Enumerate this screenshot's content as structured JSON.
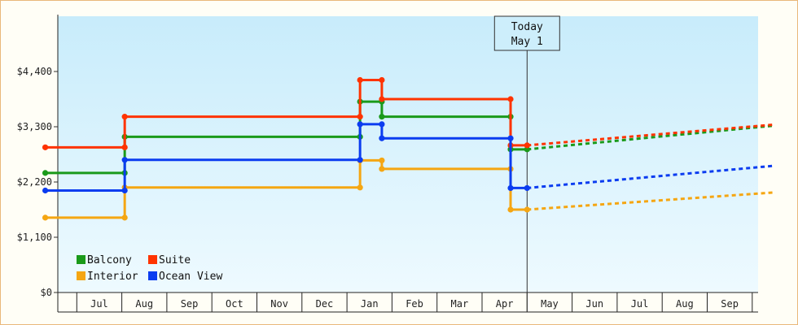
{
  "chart_data": {
    "type": "line",
    "style": "step",
    "title": "",
    "xlabel": "",
    "ylabel": "",
    "y_ticks": [
      "$0",
      "$1,100",
      "$2,200",
      "$3,300",
      "$4,400"
    ],
    "ylim": [
      0,
      5500
    ],
    "x_tick_labels": [
      "Jul",
      "Aug",
      "Sep",
      "Oct",
      "Nov",
      "Dec",
      "Jan",
      "Feb",
      "Mar",
      "Apr",
      "May",
      "Jun",
      "Jul",
      "Aug",
      "Sep"
    ],
    "x_months": [
      "2024-07",
      "2024-08",
      "2024-09",
      "2024-10",
      "2024-11",
      "2024-12",
      "2025-01",
      "2025-02",
      "2025-03",
      "2025-04",
      "2025-05",
      "2025-06",
      "2025-07",
      "2025-08",
      "2025-09"
    ],
    "today_marker": {
      "lines": [
        "Today",
        "May 1"
      ],
      "date": "2025-05-01"
    },
    "legend_position": "bottom-left",
    "background": "gradient light blue",
    "series": [
      {
        "name": "Balcony",
        "color": "#1a9a1a",
        "points": [
          [
            "2024-06-10",
            2380
          ],
          [
            "2024-08-03",
            2380
          ],
          [
            "2024-08-03",
            3100
          ],
          [
            "2025-01-10",
            3100
          ],
          [
            "2025-01-10",
            3800
          ],
          [
            "2025-01-25",
            3800
          ],
          [
            "2025-01-25",
            3500
          ],
          [
            "2025-04-20",
            3500
          ],
          [
            "2025-04-20",
            2850
          ],
          [
            "2025-05-01",
            2850
          ]
        ],
        "projection": [
          [
            "2025-05-01",
            2850
          ],
          [
            "2025-10-15",
            3320
          ]
        ]
      },
      {
        "name": "Suite",
        "color": "#ff3300",
        "points": [
          [
            "2024-06-10",
            2890
          ],
          [
            "2024-08-03",
            2890
          ],
          [
            "2024-08-03",
            3500
          ],
          [
            "2025-01-10",
            3500
          ],
          [
            "2025-01-10",
            4230
          ],
          [
            "2025-01-25",
            4230
          ],
          [
            "2025-01-25",
            3850
          ],
          [
            "2025-04-20",
            3850
          ],
          [
            "2025-04-20",
            2930
          ],
          [
            "2025-05-01",
            2930
          ]
        ],
        "projection": [
          [
            "2025-05-01",
            2930
          ],
          [
            "2025-10-15",
            3340
          ]
        ]
      },
      {
        "name": "Interior",
        "color": "#f5a612",
        "points": [
          [
            "2024-06-10",
            1490
          ],
          [
            "2024-08-03",
            1490
          ],
          [
            "2024-08-03",
            2090
          ],
          [
            "2025-01-10",
            2090
          ],
          [
            "2025-01-10",
            2630
          ],
          [
            "2025-01-25",
            2630
          ],
          [
            "2025-01-25",
            2460
          ],
          [
            "2025-04-20",
            2460
          ],
          [
            "2025-04-20",
            1650
          ],
          [
            "2025-05-01",
            1650
          ]
        ],
        "projection": [
          [
            "2025-05-01",
            1650
          ],
          [
            "2025-10-15",
            1990
          ]
        ]
      },
      {
        "name": "Ocean View",
        "color": "#0b3cf0",
        "points": [
          [
            "2024-06-10",
            2030
          ],
          [
            "2024-08-03",
            2030
          ],
          [
            "2024-08-03",
            2640
          ],
          [
            "2025-01-10",
            2640
          ],
          [
            "2025-01-10",
            3350
          ],
          [
            "2025-01-25",
            3350
          ],
          [
            "2025-01-25",
            3070
          ],
          [
            "2025-04-20",
            3070
          ],
          [
            "2025-04-20",
            2080
          ],
          [
            "2025-05-01",
            2080
          ]
        ],
        "projection": [
          [
            "2025-05-01",
            2080
          ],
          [
            "2025-10-15",
            2520
          ]
        ]
      }
    ]
  }
}
